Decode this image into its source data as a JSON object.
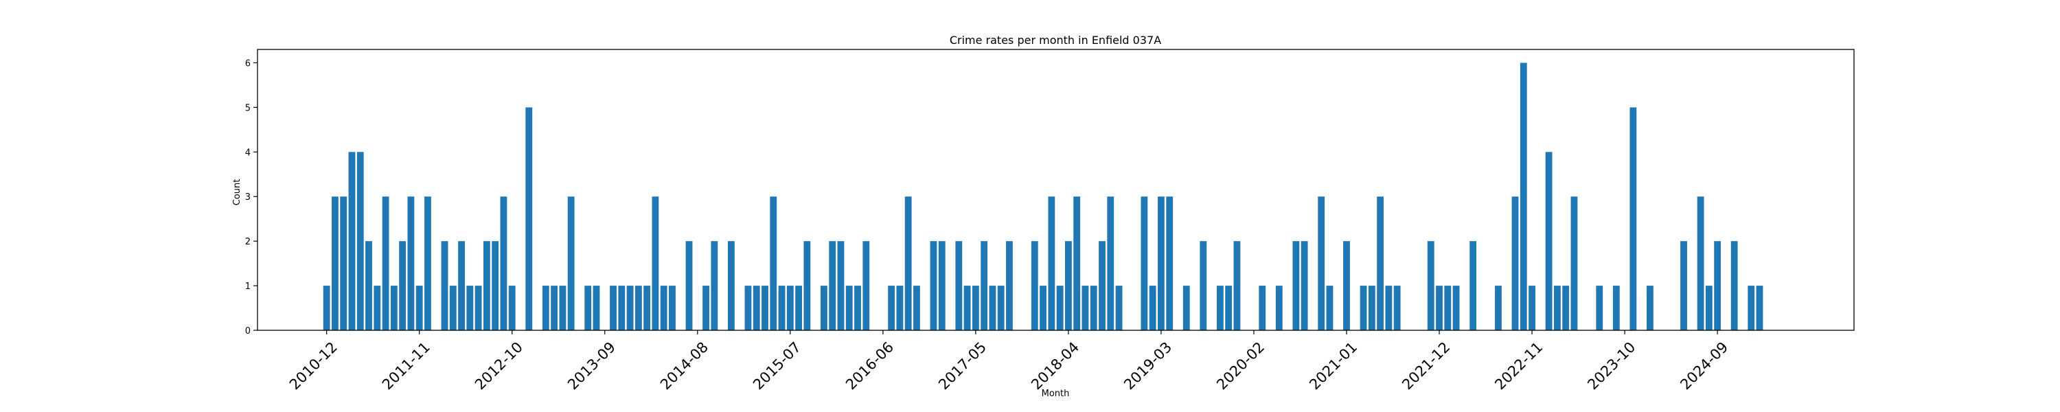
{
  "chart_data": {
    "type": "bar",
    "title": "Crime rates per month in Enfield 037A",
    "xlabel": "Month",
    "ylabel": "Count",
    "ylim": [
      0,
      6.3
    ],
    "yticks": [
      0,
      1,
      2,
      3,
      4,
      5,
      6
    ],
    "xlim": [
      -8.2,
      181.2
    ],
    "xtick_labels": [
      "2010-12",
      "2011-11",
      "2012-10",
      "2013-09",
      "2014-08",
      "2015-07",
      "2016-06",
      "2017-05",
      "2018-04",
      "2019-03",
      "2020-02",
      "2021-01",
      "2021-12",
      "2022-11",
      "2023-10",
      "2024-09"
    ],
    "xtick_positions": [
      0,
      11,
      22,
      33,
      44,
      55,
      66,
      77,
      88,
      99,
      110,
      121,
      132,
      143,
      154,
      165
    ],
    "grid": false,
    "bar_color": "#1f77b4",
    "values": [
      1,
      3,
      3,
      4,
      4,
      2,
      1,
      3,
      1,
      2,
      3,
      1,
      3,
      0,
      2,
      1,
      2,
      1,
      1,
      2,
      2,
      3,
      1,
      0,
      5,
      0,
      1,
      1,
      1,
      3,
      0,
      1,
      1,
      0,
      1,
      1,
      1,
      1,
      1,
      3,
      1,
      1,
      0,
      2,
      0,
      1,
      2,
      0,
      2,
      0,
      1,
      1,
      1,
      3,
      1,
      1,
      1,
      2,
      0,
      1,
      2,
      2,
      1,
      1,
      2,
      0,
      0,
      1,
      1,
      3,
      1,
      0,
      2,
      2,
      0,
      2,
      1,
      1,
      2,
      1,
      1,
      2,
      0,
      0,
      2,
      1,
      3,
      1,
      2,
      3,
      1,
      1,
      2,
      3,
      1,
      0,
      0,
      3,
      1,
      3,
      3,
      0,
      1,
      0,
      2,
      0,
      1,
      1,
      2,
      0,
      0,
      1,
      0,
      1,
      0,
      2,
      2,
      0,
      3,
      1,
      0,
      2,
      0,
      1,
      1,
      3,
      1,
      1,
      0,
      0,
      0,
      2,
      1,
      1,
      1,
      0,
      2,
      0,
      0,
      1,
      0,
      3,
      6,
      1,
      0,
      4,
      1,
      1,
      3,
      0,
      0,
      1,
      0,
      1,
      0,
      5,
      0,
      1,
      0,
      0,
      0,
      2,
      0,
      3,
      1,
      2,
      0,
      2,
      0,
      1,
      1
    ]
  }
}
